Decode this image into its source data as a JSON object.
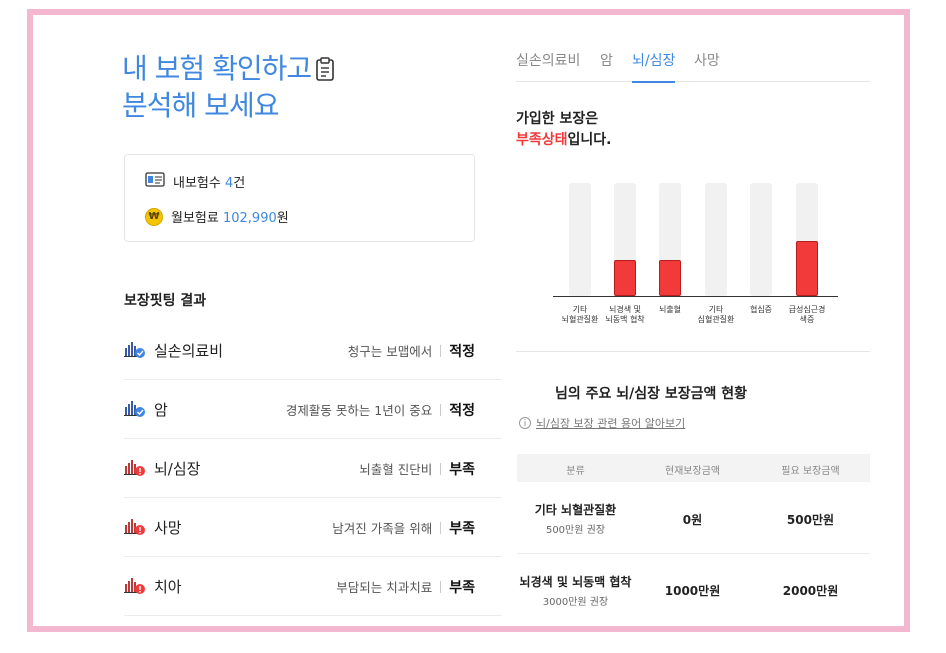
{
  "title": {
    "line1": "내 보험 확인하고",
    "line2": "분석해 보세요"
  },
  "summary": {
    "count_label": "내보험수",
    "count_value": "4",
    "count_unit": "건",
    "premium_label": "월보험료",
    "premium_value": "102,990",
    "premium_unit": "원",
    "coin_symbol": "₩"
  },
  "fitting": {
    "heading": "보장핏팅 결과",
    "rows": [
      {
        "name": "실손의료비",
        "desc": "청구는 보맵에서",
        "result": "적정",
        "status": "ok"
      },
      {
        "name": "암",
        "desc": "경제활동 못하는 1년이 중요",
        "result": "적정",
        "status": "ok"
      },
      {
        "name": "뇌/심장",
        "desc": "뇌출혈 진단비",
        "result": "부족",
        "status": "bad"
      },
      {
        "name": "사망",
        "desc": "남겨진 가족을 위해",
        "result": "부족",
        "status": "bad"
      },
      {
        "name": "치아",
        "desc": "부담되는 치과치료",
        "result": "부족",
        "status": "bad"
      }
    ]
  },
  "tabs": [
    {
      "label": "실손의료비",
      "active": false
    },
    {
      "label": "암",
      "active": false
    },
    {
      "label": "뇌/심장",
      "active": true
    },
    {
      "label": "사망",
      "active": false
    }
  ],
  "status": {
    "line1": "가입한 보장은",
    "red": "부족상태",
    "rest": "입니다."
  },
  "chart_data": {
    "type": "bar",
    "categories": [
      "기타\n뇌혈관질환",
      "뇌경색 및\n뇌동맥 협착",
      "뇌출혈",
      "기타\n심혈관질환",
      "협심증",
      "급성심근경\n색증"
    ],
    "values": [
      0,
      0.32,
      0.32,
      0,
      0,
      0.49
    ],
    "ylim": [
      0,
      1
    ],
    "color": "#f23a3a"
  },
  "amounts": {
    "title": "님의 주요 뇌/심장 보장금액 현황",
    "terms_link": "뇌/심장 보장 관련 용어 알아보기",
    "columns": [
      "분류",
      "현재보장금액",
      "필요 보장금액"
    ],
    "rows": [
      {
        "label": "기타 뇌혈관질환",
        "sub": "500만원 권장",
        "current": "0원",
        "required": "500만원"
      },
      {
        "label": "뇌경색 및 뇌동맥 협착",
        "sub": "3000만원 권장",
        "current": "1000만원",
        "required": "2000만원"
      }
    ]
  },
  "colors": {
    "accent": "#3f87e0",
    "danger": "#f23a3a",
    "frame": "#f3b8cf"
  }
}
